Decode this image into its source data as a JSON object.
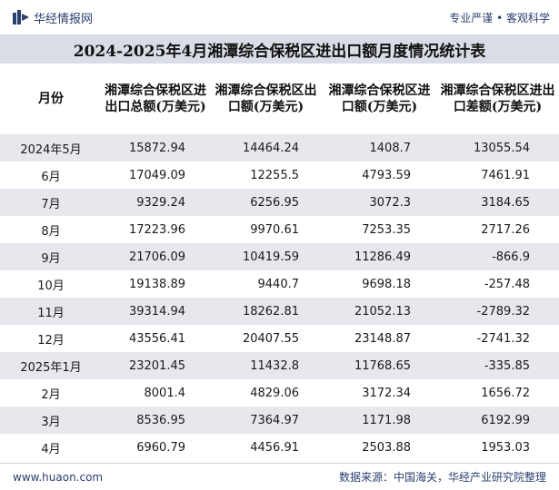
{
  "header": {
    "brand": "华经情报网",
    "slogan": "专业严谨 • 客观科学"
  },
  "title": "2024-2025年4月湘潭综合保税区进出口额月度情况统计表",
  "columns": [
    "月份",
    "湘潭综合保税区进出口总额(万美元)",
    "湘潭综合保税区出口额(万美元)",
    "湘潭综合保税区进口额(万美元)",
    "湘潭综合保税区进出口差额(万美元)"
  ],
  "rows": [
    [
      "2024年5月",
      "15872.94",
      "14464.24",
      "1408.7",
      "13055.54"
    ],
    [
      "6月",
      "17049.09",
      "12255.5",
      "4793.59",
      "7461.91"
    ],
    [
      "7月",
      "9329.24",
      "6256.95",
      "3072.3",
      "3184.65"
    ],
    [
      "8月",
      "17223.96",
      "9970.61",
      "7253.35",
      "2717.26"
    ],
    [
      "9月",
      "21706.09",
      "10419.59",
      "11286.49",
      "-866.9"
    ],
    [
      "10月",
      "19138.89",
      "9440.7",
      "9698.18",
      "-257.48"
    ],
    [
      "11月",
      "39314.94",
      "18262.81",
      "21052.13",
      "-2789.32"
    ],
    [
      "12月",
      "43556.41",
      "20407.55",
      "23148.87",
      "-2741.32"
    ],
    [
      "2025年1月",
      "23201.45",
      "11432.8",
      "11768.65",
      "-335.85"
    ],
    [
      "2月",
      "8001.4",
      "4829.06",
      "3172.34",
      "1656.72"
    ],
    [
      "3月",
      "8536.95",
      "7364.97",
      "1171.98",
      "6192.99"
    ],
    [
      "4月",
      "6960.79",
      "4456.91",
      "2503.88",
      "1953.03"
    ]
  ],
  "footer": {
    "site": "www.huaon.com",
    "source": "数据来源：中国海关，华经产业研究院整理"
  },
  "colors": {
    "brand": "#2b3f6e",
    "title_bg": "#d9dde6",
    "stripe": "#e6e8ee"
  }
}
